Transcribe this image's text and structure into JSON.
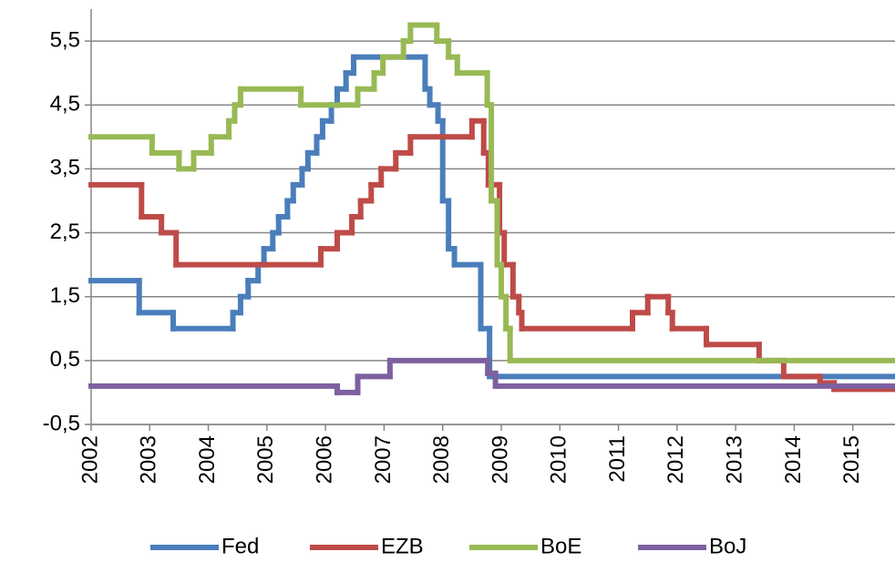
{
  "chart_data": {
    "type": "line",
    "step": "post",
    "xlim": [
      2002,
      2015.72
    ],
    "ylim": [
      -0.5,
      6
    ],
    "xticks": [
      2002,
      2003,
      2004,
      2005,
      2006,
      2007,
      2008,
      2009,
      2010,
      2011,
      2012,
      2013,
      2014,
      2015
    ],
    "yticks": [
      {
        "value": -0.5,
        "label": "-0,5"
      },
      {
        "value": 0.5,
        "label": "0,5"
      },
      {
        "value": 1.5,
        "label": "1,5"
      },
      {
        "value": 2.5,
        "label": "2,5"
      },
      {
        "value": 3.5,
        "label": "3,5"
      },
      {
        "value": 4.5,
        "label": "4,5"
      },
      {
        "value": 5.5,
        "label": "5,5"
      }
    ],
    "grid": true,
    "legend": "bottom",
    "series": [
      {
        "name": "Fed",
        "color": "#4a7ebb",
        "x": [
          2002,
          2002.82,
          2003.4,
          2004.42,
          2004.55,
          2004.68,
          2004.85,
          2004.95,
          2005.1,
          2005.2,
          2005.35,
          2005.45,
          2005.6,
          2005.7,
          2005.85,
          2005.95,
          2006.1,
          2006.2,
          2006.35,
          2006.48,
          2007.7,
          2007.78,
          2007.92,
          2008.0,
          2008.1,
          2008.2,
          2008.65,
          2008.8
        ],
        "values": [
          1.75,
          1.25,
          1,
          1.25,
          1.5,
          1.75,
          2,
          2.25,
          2.5,
          2.75,
          3,
          3.25,
          3.5,
          3.75,
          4,
          4.25,
          4.5,
          4.75,
          5,
          5.25,
          4.75,
          4.5,
          4.25,
          3,
          2.25,
          2,
          1,
          0.25
        ]
      },
      {
        "name": "EZB",
        "color": "#be4b48",
        "x": [
          2002,
          2002.86,
          2003.2,
          2003.45,
          2005.92,
          2006.2,
          2006.45,
          2006.6,
          2006.78,
          2006.95,
          2007.2,
          2007.45,
          2008.5,
          2008.7,
          2008.78,
          2008.97,
          2009.05,
          2009.2,
          2009.3,
          2009.35,
          2011.24,
          2011.5,
          2011.85,
          2011.92,
          2012.5,
          2013.4,
          2013.82,
          2014.44,
          2014.68
        ],
        "values": [
          3.25,
          2.75,
          2.5,
          2,
          2.25,
          2.5,
          2.75,
          3,
          3.25,
          3.5,
          3.75,
          4,
          4.25,
          3.75,
          3.25,
          2.5,
          2,
          1.5,
          1.25,
          1,
          1.25,
          1.5,
          1.25,
          1,
          0.75,
          0.5,
          0.25,
          0.15,
          0.05
        ]
      },
      {
        "name": "BoE",
        "color": "#98b954",
        "x": [
          2002,
          2003.04,
          2003.5,
          2003.75,
          2004.05,
          2004.35,
          2004.45,
          2004.55,
          2005.58,
          2006.55,
          2006.83,
          2006.98,
          2007.33,
          2007.45,
          2007.9,
          2008.1,
          2008.25,
          2008.76,
          2008.83,
          2008.93,
          2009.0,
          2009.08,
          2009.15
        ],
        "values": [
          4,
          3.75,
          3.5,
          3.75,
          4,
          4.25,
          4.5,
          4.75,
          4.5,
          4.75,
          5,
          5.25,
          5.5,
          5.75,
          5.5,
          5.25,
          5,
          4.5,
          3,
          2,
          1.5,
          1,
          0.5
        ]
      },
      {
        "name": "BoJ",
        "color": "#7d60a0",
        "x": [
          2002,
          2006.2,
          2006.55,
          2007.1,
          2008.77,
          2008.9
        ],
        "values": [
          0.1,
          0,
          0.25,
          0.5,
          0.3,
          0.1
        ]
      }
    ]
  }
}
